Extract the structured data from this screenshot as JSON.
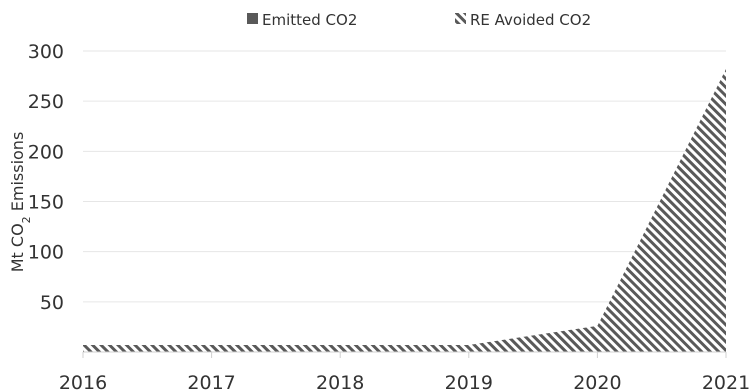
{
  "chart_data": {
    "type": "area",
    "x": [
      "2016",
      "2017",
      "2018",
      "2019",
      "2020",
      "2021"
    ],
    "series": [
      {
        "name": "Emitted CO2",
        "values": [
          0,
          0,
          0,
          0,
          0,
          0
        ],
        "color": "#595959",
        "fill": "solid"
      },
      {
        "name": "RE Avoided CO2",
        "values": [
          7,
          7,
          7,
          7,
          26,
          282
        ],
        "color": "#595959",
        "fill": "hatched"
      }
    ],
    "ylabel_prefix": "Mt CO",
    "ylabel_sub": "2",
    "ylabel_suffix": " Emissions",
    "yticks": [
      "50",
      "100",
      "150",
      "200",
      "250",
      "300"
    ],
    "ylim": [
      0,
      300
    ],
    "grid": true,
    "legend_position": "top"
  }
}
